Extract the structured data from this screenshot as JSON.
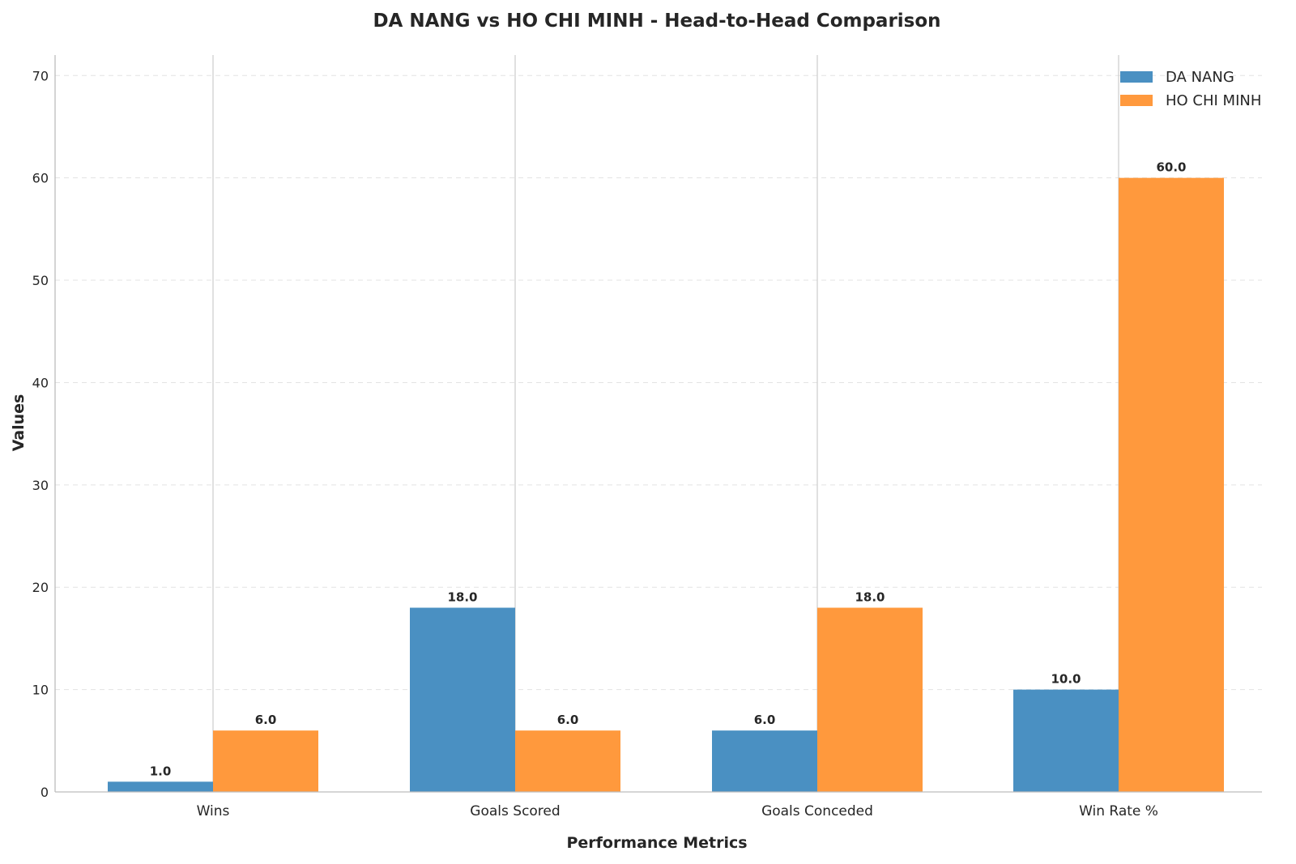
{
  "chart_data": {
    "type": "bar",
    "title": "DA NANG vs HO CHI MINH - Head-to-Head Comparison",
    "xlabel": "Performance Metrics",
    "ylabel": "Values",
    "categories": [
      "Wins",
      "Goals Scored",
      "Goals Conceded",
      "Win Rate %"
    ],
    "series": [
      {
        "name": "DA NANG",
        "values": [
          1.0,
          18.0,
          6.0,
          10.0
        ],
        "labels": [
          "1.0",
          "18.0",
          "6.0",
          "10.0"
        ],
        "color": "#4a90c2"
      },
      {
        "name": "HO CHI MINH",
        "values": [
          6.0,
          6.0,
          18.0,
          60.0
        ],
        "labels": [
          "6.0",
          "6.0",
          "18.0",
          "60.0"
        ],
        "color": "#ff993d"
      }
    ],
    "ylim": [
      0,
      72
    ],
    "yticks": [
      0,
      10,
      20,
      30,
      40,
      50,
      60,
      70
    ],
    "ytick_labels": [
      "0",
      "10",
      "20",
      "30",
      "40",
      "50",
      "60",
      "70"
    ],
    "grid": {
      "horizontal": "dashed",
      "vertical": "solid at categories"
    },
    "legend_position": "top-right"
  }
}
